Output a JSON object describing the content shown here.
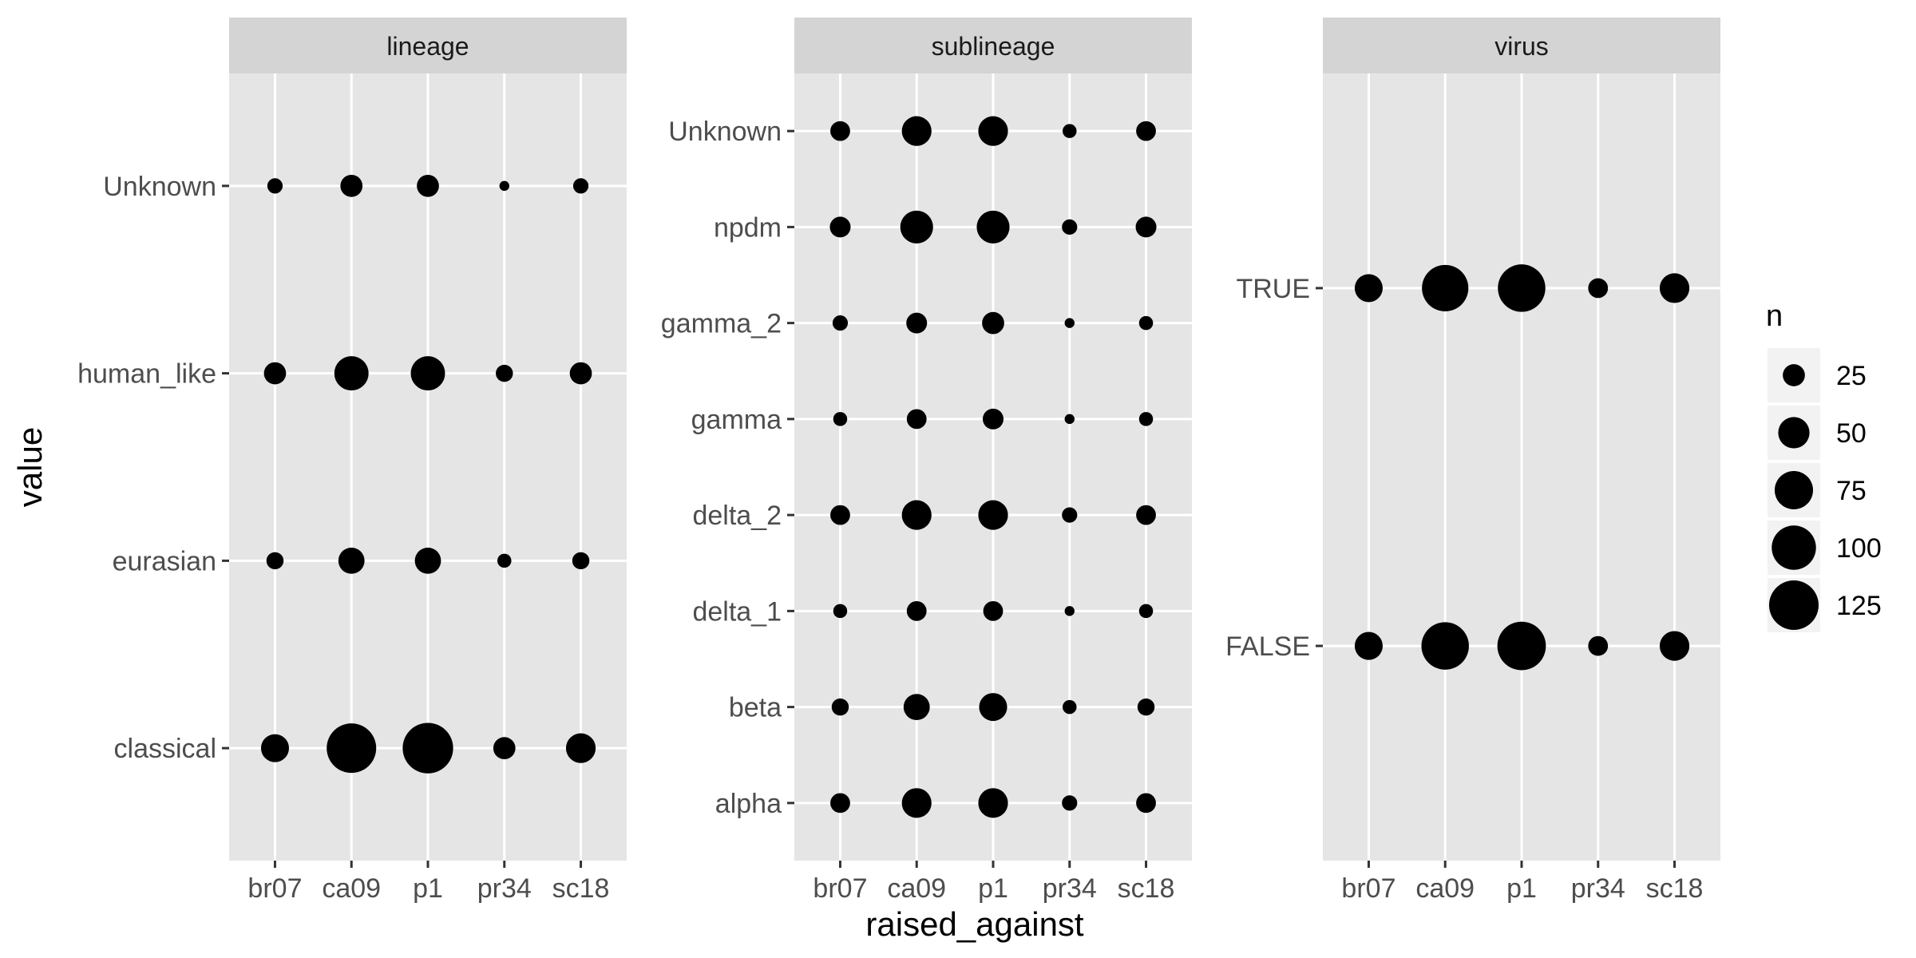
{
  "chart_data": {
    "type": "scatter",
    "subtype": "faceted-dot-plot",
    "x_title": "raised_against",
    "y_title": "value",
    "x_categories": [
      "br07",
      "ca09",
      "p1",
      "pr34",
      "sc18"
    ],
    "size_legend": {
      "title": "n",
      "breaks": [
        25,
        50,
        75,
        100,
        125
      ]
    },
    "colors": {
      "panel_background": "#e5e5e5",
      "strip_background": "#d4d4d4",
      "grid": "#ffffff",
      "point": "#000000"
    },
    "facets": [
      {
        "label": "lineage",
        "y_categories": [
          "classical",
          "eurasian",
          "human_like",
          "Unknown"
        ],
        "points": [
          {
            "x": "br07",
            "y": "classical",
            "n": 40
          },
          {
            "x": "ca09",
            "y": "classical",
            "n": 125
          },
          {
            "x": "p1",
            "y": "classical",
            "n": 130
          },
          {
            "x": "pr34",
            "y": "classical",
            "n": 25
          },
          {
            "x": "sc18",
            "y": "classical",
            "n": 45
          },
          {
            "x": "br07",
            "y": "eurasian",
            "n": 15
          },
          {
            "x": "ca09",
            "y": "eurasian",
            "n": 35
          },
          {
            "x": "p1",
            "y": "eurasian",
            "n": 35
          },
          {
            "x": "pr34",
            "y": "eurasian",
            "n": 10
          },
          {
            "x": "sc18",
            "y": "eurasian",
            "n": 15
          },
          {
            "x": "br07",
            "y": "human_like",
            "n": 25
          },
          {
            "x": "ca09",
            "y": "human_like",
            "n": 60
          },
          {
            "x": "p1",
            "y": "human_like",
            "n": 60
          },
          {
            "x": "pr34",
            "y": "human_like",
            "n": 15
          },
          {
            "x": "sc18",
            "y": "human_like",
            "n": 25
          },
          {
            "x": "br07",
            "y": "Unknown",
            "n": 12
          },
          {
            "x": "ca09",
            "y": "Unknown",
            "n": 25
          },
          {
            "x": "p1",
            "y": "Unknown",
            "n": 25
          },
          {
            "x": "pr34",
            "y": "Unknown",
            "n": 5
          },
          {
            "x": "sc18",
            "y": "Unknown",
            "n": 12
          }
        ]
      },
      {
        "label": "sublineage",
        "y_categories": [
          "alpha",
          "beta",
          "delta_1",
          "delta_2",
          "gamma",
          "gamma_2",
          "npdm",
          "Unknown"
        ],
        "points": [
          {
            "x": "br07",
            "y": "alpha",
            "n": 20
          },
          {
            "x": "ca09",
            "y": "alpha",
            "n": 45
          },
          {
            "x": "p1",
            "y": "alpha",
            "n": 45
          },
          {
            "x": "pr34",
            "y": "alpha",
            "n": 12
          },
          {
            "x": "sc18",
            "y": "alpha",
            "n": 20
          },
          {
            "x": "br07",
            "y": "beta",
            "n": 15
          },
          {
            "x": "ca09",
            "y": "beta",
            "n": 35
          },
          {
            "x": "p1",
            "y": "beta",
            "n": 40
          },
          {
            "x": "pr34",
            "y": "beta",
            "n": 10
          },
          {
            "x": "sc18",
            "y": "beta",
            "n": 15
          },
          {
            "x": "br07",
            "y": "delta_1",
            "n": 10
          },
          {
            "x": "ca09",
            "y": "delta_1",
            "n": 20
          },
          {
            "x": "p1",
            "y": "delta_1",
            "n": 20
          },
          {
            "x": "pr34",
            "y": "delta_1",
            "n": 5
          },
          {
            "x": "sc18",
            "y": "delta_1",
            "n": 10
          },
          {
            "x": "br07",
            "y": "delta_2",
            "n": 20
          },
          {
            "x": "ca09",
            "y": "delta_2",
            "n": 45
          },
          {
            "x": "p1",
            "y": "delta_2",
            "n": 45
          },
          {
            "x": "pr34",
            "y": "delta_2",
            "n": 12
          },
          {
            "x": "sc18",
            "y": "delta_2",
            "n": 20
          },
          {
            "x": "br07",
            "y": "gamma",
            "n": 10
          },
          {
            "x": "ca09",
            "y": "gamma",
            "n": 20
          },
          {
            "x": "p1",
            "y": "gamma",
            "n": 22
          },
          {
            "x": "pr34",
            "y": "gamma",
            "n": 5
          },
          {
            "x": "sc18",
            "y": "gamma",
            "n": 10
          },
          {
            "x": "br07",
            "y": "gamma_2",
            "n": 12
          },
          {
            "x": "ca09",
            "y": "gamma_2",
            "n": 22
          },
          {
            "x": "p1",
            "y": "gamma_2",
            "n": 25
          },
          {
            "x": "pr34",
            "y": "gamma_2",
            "n": 5
          },
          {
            "x": "sc18",
            "y": "gamma_2",
            "n": 10
          },
          {
            "x": "br07",
            "y": "npdm",
            "n": 22
          },
          {
            "x": "ca09",
            "y": "npdm",
            "n": 55
          },
          {
            "x": "p1",
            "y": "npdm",
            "n": 55
          },
          {
            "x": "pr34",
            "y": "npdm",
            "n": 12
          },
          {
            "x": "sc18",
            "y": "npdm",
            "n": 22
          },
          {
            "x": "br07",
            "y": "Unknown",
            "n": 20
          },
          {
            "x": "ca09",
            "y": "Unknown",
            "n": 45
          },
          {
            "x": "p1",
            "y": "Unknown",
            "n": 45
          },
          {
            "x": "pr34",
            "y": "Unknown",
            "n": 10
          },
          {
            "x": "sc18",
            "y": "Unknown",
            "n": 20
          }
        ]
      },
      {
        "label": "virus",
        "y_categories": [
          "FALSE",
          "TRUE"
        ],
        "points": [
          {
            "x": "br07",
            "y": "FALSE",
            "n": 40
          },
          {
            "x": "ca09",
            "y": "FALSE",
            "n": 115
          },
          {
            "x": "p1",
            "y": "FALSE",
            "n": 120
          },
          {
            "x": "pr34",
            "y": "FALSE",
            "n": 20
          },
          {
            "x": "sc18",
            "y": "FALSE",
            "n": 45
          },
          {
            "x": "br07",
            "y": "TRUE",
            "n": 40
          },
          {
            "x": "ca09",
            "y": "TRUE",
            "n": 110
          },
          {
            "x": "p1",
            "y": "TRUE",
            "n": 115
          },
          {
            "x": "pr34",
            "y": "TRUE",
            "n": 20
          },
          {
            "x": "sc18",
            "y": "TRUE",
            "n": 45
          }
        ]
      }
    ]
  }
}
